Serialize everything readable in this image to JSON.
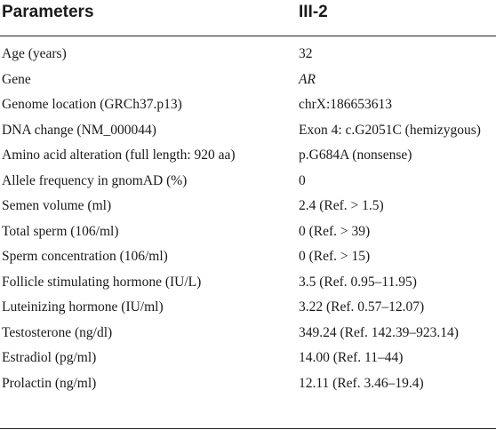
{
  "header": {
    "col_param": "Parameters",
    "col_value": "III-2"
  },
  "rows": [
    {
      "param": "Age (years)",
      "value": "32",
      "italic": false
    },
    {
      "param": "Gene",
      "value": "AR",
      "italic": true
    },
    {
      "param": "Genome location (GRCh37.p13)",
      "value": "chrX:186653613",
      "italic": false
    },
    {
      "param": "DNA change (NM_000044)",
      "value": "Exon 4: c.G2051C (hemizygous)",
      "italic": false
    },
    {
      "param": "Amino acid alteration (full length: 920 aa)",
      "value": "p.G684A (nonsense)",
      "italic": false
    },
    {
      "param": "Allele frequency in gnomAD (%)",
      "value": "0",
      "italic": false
    },
    {
      "param": "Semen volume (ml)",
      "value": "2.4 (Ref. > 1.5)",
      "italic": false
    },
    {
      "param": "Total sperm (106/ml)",
      "value": "0 (Ref. > 39)",
      "italic": false
    },
    {
      "param": "Sperm concentration (106/ml)",
      "value": "0 (Ref. > 15)",
      "italic": false
    },
    {
      "param": "Follicle stimulating hormone (IU/L)",
      "value": "3.5 (Ref. 0.95–11.95)",
      "italic": false
    },
    {
      "param": "Luteinizing hormone (IU/ml)",
      "value": "3.22 (Ref. 0.57–12.07)",
      "italic": false
    },
    {
      "param": "Testosterone (ng/dl)",
      "value": "349.24 (Ref. 142.39–923.14)",
      "italic": false
    },
    {
      "param": "Estradiol (pg/ml)",
      "value": "14.00 (Ref. 11–44)",
      "italic": false
    },
    {
      "param": "Prolactin (ng/ml)",
      "value": "12.11 (Ref. 3.46–19.4)",
      "italic": false
    }
  ]
}
